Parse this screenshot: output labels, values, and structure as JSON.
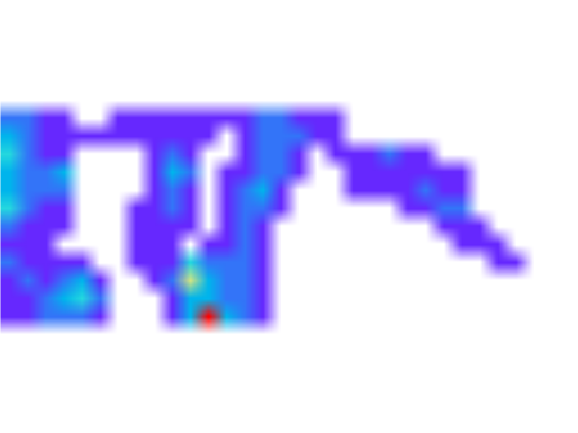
{
  "chart_data": {
    "type": "heatmap",
    "color": "rainbow",
    "grid": false,
    "tick_labels": false,
    "xlim": [
      0,
      32
    ],
    "ylim": [
      0,
      24
    ],
    "zlim": [
      0,
      10
    ],
    "cells": [
      [
        null,
        null,
        null,
        null,
        null,
        null,
        null,
        null,
        null,
        null,
        null,
        null,
        null,
        null,
        null,
        null,
        null,
        null,
        null,
        null,
        null,
        null,
        null,
        null,
        null,
        null,
        null,
        null,
        null,
        null,
        null,
        null
      ],
      [
        null,
        null,
        null,
        null,
        null,
        null,
        null,
        null,
        null,
        null,
        null,
        null,
        null,
        null,
        null,
        null,
        null,
        null,
        null,
        null,
        null,
        null,
        null,
        null,
        null,
        null,
        null,
        null,
        null,
        null,
        null,
        null
      ],
      [
        null,
        null,
        null,
        null,
        null,
        null,
        null,
        null,
        null,
        null,
        null,
        null,
        null,
        null,
        null,
        null,
        null,
        null,
        null,
        null,
        null,
        null,
        null,
        null,
        null,
        null,
        null,
        null,
        null,
        null,
        null,
        null
      ],
      [
        null,
        null,
        null,
        null,
        null,
        null,
        null,
        null,
        null,
        null,
        null,
        null,
        null,
        null,
        null,
        null,
        null,
        null,
        null,
        null,
        null,
        null,
        null,
        null,
        null,
        null,
        null,
        null,
        null,
        null,
        null,
        null
      ],
      [
        null,
        null,
        null,
        null,
        null,
        null,
        null,
        null,
        null,
        null,
        null,
        null,
        null,
        null,
        null,
        null,
        null,
        null,
        null,
        null,
        null,
        null,
        null,
        null,
        null,
        null,
        null,
        null,
        null,
        null,
        null,
        null
      ],
      [
        null,
        null,
        null,
        null,
        null,
        null,
        null,
        null,
        null,
        null,
        null,
        null,
        null,
        null,
        null,
        null,
        null,
        null,
        null,
        null,
        null,
        null,
        null,
        null,
        null,
        null,
        null,
        null,
        null,
        null,
        null,
        null
      ],
      [
        1.5,
        1.5,
        0.5,
        0.5,
        null,
        null,
        0.5,
        0.5,
        0.5,
        0.5,
        0.5,
        0.5,
        0.5,
        0.5,
        1.5,
        1.5,
        0.5,
        0.5,
        0.5,
        null,
        null,
        null,
        null,
        null,
        null,
        null,
        null,
        null,
        null,
        null,
        null,
        null
      ],
      [
        2.5,
        1.5,
        0.5,
        0.5,
        0.5,
        0.5,
        0.5,
        0.5,
        0.5,
        0.5,
        0.5,
        0.5,
        null,
        0.5,
        1.5,
        1.5,
        1.5,
        0.5,
        0.5,
        null,
        null,
        null,
        null,
        null,
        null,
        null,
        null,
        null,
        null,
        null,
        null,
        null
      ],
      [
        3.2,
        1.5,
        0.5,
        0.5,
        null,
        null,
        null,
        null,
        0.5,
        1.5,
        0.5,
        null,
        null,
        0.5,
        1.5,
        1.5,
        0.5,
        null,
        0.5,
        0.5,
        0.5,
        1.5,
        0.5,
        0.5,
        null,
        null,
        null,
        null,
        null,
        null,
        null,
        null
      ],
      [
        2.5,
        1.5,
        1.5,
        2.5,
        null,
        null,
        null,
        null,
        0.5,
        2.5,
        1.5,
        null,
        0.5,
        0.5,
        1.5,
        1.5,
        0.5,
        null,
        null,
        0.5,
        0.5,
        0.5,
        0.5,
        0.5,
        0.5,
        0.5,
        null,
        null,
        null,
        null,
        null,
        null
      ],
      [
        2.5,
        1.5,
        1.5,
        1.5,
        null,
        null,
        null,
        null,
        0.5,
        1.5,
        0.5,
        null,
        0.5,
        1.5,
        2.5,
        0.5,
        null,
        null,
        null,
        0.5,
        0.5,
        0.5,
        0.5,
        1.5,
        0.5,
        0.5,
        null,
        null,
        null,
        null,
        null,
        null
      ],
      [
        3.2,
        1.5,
        0.5,
        0.5,
        null,
        null,
        null,
        0.5,
        0.5,
        1.5,
        0.5,
        null,
        0.5,
        1.5,
        1.5,
        0.5,
        null,
        null,
        null,
        null,
        null,
        null,
        0.5,
        0.5,
        1.5,
        1.5,
        null,
        null,
        null,
        null,
        null,
        null
      ],
      [
        1.5,
        0.5,
        0.5,
        0.5,
        null,
        null,
        null,
        0.5,
        0.5,
        0.5,
        0.5,
        null,
        0.5,
        1.5,
        0.5,
        null,
        null,
        null,
        null,
        null,
        null,
        null,
        null,
        null,
        0.5,
        0.5,
        0.5,
        null,
        null,
        null,
        null,
        null
      ],
      [
        0.5,
        0.5,
        0.5,
        null,
        null,
        null,
        null,
        0.5,
        0.5,
        0.5,
        null,
        0.5,
        0.5,
        1.5,
        0.5,
        null,
        null,
        null,
        null,
        null,
        null,
        null,
        null,
        null,
        null,
        0.5,
        0.5,
        0.5,
        null,
        null,
        null,
        null
      ],
      [
        1.5,
        0.5,
        0.5,
        0.5,
        0.5,
        null,
        null,
        0.5,
        0.5,
        0.5,
        3.2,
        1.5,
        1.5,
        1.5,
        0.5,
        null,
        null,
        null,
        null,
        null,
        null,
        null,
        null,
        null,
        null,
        null,
        null,
        0.5,
        0.5,
        null,
        null,
        null
      ],
      [
        0.5,
        1.5,
        0.5,
        1.5,
        2.5,
        0.5,
        null,
        null,
        0.5,
        1.5,
        6.5,
        2.5,
        1.5,
        1.5,
        0.5,
        null,
        null,
        null,
        null,
        null,
        null,
        null,
        null,
        null,
        null,
        null,
        null,
        null,
        null,
        null,
        null,
        null
      ],
      [
        0.5,
        0.5,
        1.5,
        2.5,
        3.2,
        1.5,
        null,
        null,
        null,
        0.5,
        2.5,
        2.5,
        1.5,
        1.5,
        0.5,
        null,
        null,
        null,
        null,
        null,
        null,
        null,
        null,
        null,
        null,
        null,
        null,
        null,
        null,
        null,
        null,
        null
      ],
      [
        0.5,
        0.5,
        1.5,
        1.5,
        1.5,
        0.5,
        null,
        null,
        null,
        0.5,
        2.5,
        10,
        2.5,
        1.5,
        0.5,
        null,
        null,
        null,
        null,
        null,
        null,
        null,
        null,
        null,
        null,
        null,
        null,
        null,
        null,
        null,
        null,
        null
      ],
      [
        null,
        null,
        null,
        null,
        null,
        null,
        null,
        null,
        null,
        null,
        null,
        null,
        null,
        null,
        null,
        null,
        null,
        null,
        null,
        null,
        null,
        null,
        null,
        null,
        null,
        null,
        null,
        null,
        null,
        null,
        null,
        null
      ],
      [
        null,
        null,
        null,
        null,
        null,
        null,
        null,
        null,
        null,
        null,
        null,
        null,
        null,
        null,
        null,
        null,
        null,
        null,
        null,
        null,
        null,
        null,
        null,
        null,
        null,
        null,
        null,
        null,
        null,
        null,
        null,
        null
      ],
      [
        null,
        null,
        null,
        null,
        null,
        null,
        null,
        null,
        null,
        null,
        null,
        null,
        null,
        null,
        null,
        null,
        null,
        null,
        null,
        null,
        null,
        null,
        null,
        null,
        null,
        null,
        null,
        null,
        null,
        null,
        null,
        null
      ],
      [
        null,
        null,
        null,
        null,
        null,
        null,
        null,
        null,
        null,
        null,
        null,
        null,
        null,
        null,
        null,
        null,
        null,
        null,
        null,
        null,
        null,
        null,
        null,
        null,
        null,
        null,
        null,
        null,
        null,
        null,
        null,
        null
      ],
      [
        null,
        null,
        null,
        null,
        null,
        null,
        null,
        null,
        null,
        null,
        null,
        null,
        null,
        null,
        null,
        null,
        null,
        null,
        null,
        null,
        null,
        null,
        null,
        null,
        null,
        null,
        null,
        null,
        null,
        null,
        null,
        null
      ],
      [
        null,
        null,
        null,
        null,
        null,
        null,
        null,
        null,
        null,
        null,
        null,
        null,
        null,
        null,
        null,
        null,
        null,
        null,
        null,
        null,
        null,
        null,
        null,
        null,
        null,
        null,
        null,
        null,
        null,
        null,
        null,
        null
      ]
    ]
  }
}
